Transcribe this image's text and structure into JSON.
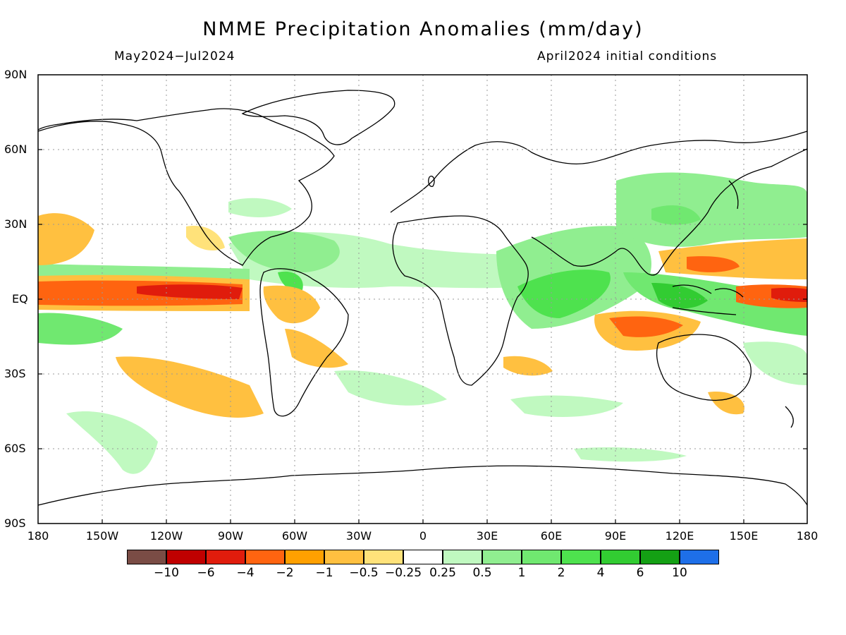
{
  "header": {
    "title": "NMME Precipitation Anomalies (mm/day)",
    "period": "May2024−Jul2024",
    "init": "April2024 initial conditions"
  },
  "map": {
    "lat_labels": [
      "90N",
      "60N",
      "30N",
      "EQ",
      "30S",
      "60S",
      "90S"
    ],
    "lon_labels": [
      "180",
      "150W",
      "120W",
      "90W",
      "60W",
      "30W",
      "0",
      "30E",
      "60E",
      "90E",
      "120E",
      "150E",
      "180"
    ]
  },
  "colorbar": {
    "colors": [
      "#7a4c45",
      "#c00000",
      "#e01c0c",
      "#ff6410",
      "#ffa000",
      "#ffc040",
      "#ffe27a",
      "#ffffff",
      "#c0f9c0",
      "#90ee90",
      "#70e870",
      "#4ee24e",
      "#32cc32",
      "#14a014",
      "#1e6fe8"
    ],
    "labels": [
      "−10",
      "−6",
      "−4",
      "−2",
      "−1",
      "−0.5",
      "−0.25",
      "0.25",
      "0.5",
      "1",
      "2",
      "4",
      "6",
      "10"
    ]
  },
  "regions": {
    "anomaly_colors": {
      "wet_light": "#c0f9c0",
      "wet_medium": "#90ee90",
      "wet_strong": "#4ee24e",
      "dry_light": "#ffe27a",
      "dry_medium": "#ffc040",
      "dry_strong": "#ff6410",
      "dry_very_strong": "#e01c0c"
    }
  }
}
